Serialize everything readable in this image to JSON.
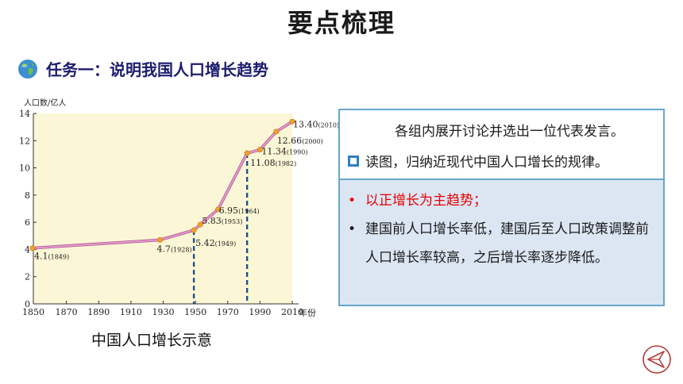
{
  "header": {
    "title": "要点梳理"
  },
  "task": {
    "label": "任务一：说明我国人口增长趋势",
    "icon": "globe-icon"
  },
  "caption": "中国人口增长示意",
  "panel": {
    "intro": "各组内展开讨论并选出一位代表发言。",
    "prompt": "读图，归纳近现代中国人口增长的规律。",
    "points": [
      {
        "bullet": "•",
        "text": "以正增长为主趋势；",
        "color": "#e60000"
      },
      {
        "bullet": "•",
        "text": "建国前人口增长率低，建国后至人口政策调整前人口增长率较高，之后增长率逐步降低。",
        "color": "#1a1a1a"
      }
    ]
  },
  "colors": {
    "plot_bg": "#fbf7d6",
    "line": "#e59ac9",
    "point": "#f0a030",
    "dash": "#1f4e8c",
    "accent_box": "#2e7fc2"
  },
  "chart_data": {
    "type": "line",
    "ylabel": "人口数/亿人",
    "xlabel": "年份",
    "xlim": [
      1850,
      2010
    ],
    "ylim": [
      0,
      14
    ],
    "x_ticks": [
      "1850",
      "1870",
      "1890",
      "1910",
      "1930",
      "1950",
      "1970",
      "1990",
      "2010"
    ],
    "y_ticks": [
      "0",
      "2",
      "4",
      "6",
      "8",
      "10",
      "12",
      "14"
    ],
    "series": [
      {
        "points": [
          {
            "x": 1849,
            "y": 4.1,
            "label": "4.1",
            "year_label": "(1849)"
          },
          {
            "x": 1928,
            "y": 4.7,
            "label": "4.7",
            "year_label": "(1928)"
          },
          {
            "x": 1949,
            "y": 5.42,
            "label": "5.42",
            "year_label": "(1949)"
          },
          {
            "x": 1953,
            "y": 5.83,
            "label": "5.83",
            "year_label": "(1953)"
          },
          {
            "x": 1964,
            "y": 6.95,
            "label": "6.95",
            "year_label": "(1964)"
          },
          {
            "x": 1982,
            "y": 11.08,
            "label": "11.08",
            "year_label": "(1982)"
          },
          {
            "x": 1990,
            "y": 11.34,
            "label": "11.34",
            "year_label": "(1990)"
          },
          {
            "x": 2000,
            "y": 12.66,
            "label": "12.66",
            "year_label": "(2000)"
          },
          {
            "x": 2010,
            "y": 13.4,
            "label": "13.40",
            "year_label": "(2010)"
          }
        ]
      }
    ],
    "markers": [
      1949,
      1982
    ],
    "grid": false
  }
}
